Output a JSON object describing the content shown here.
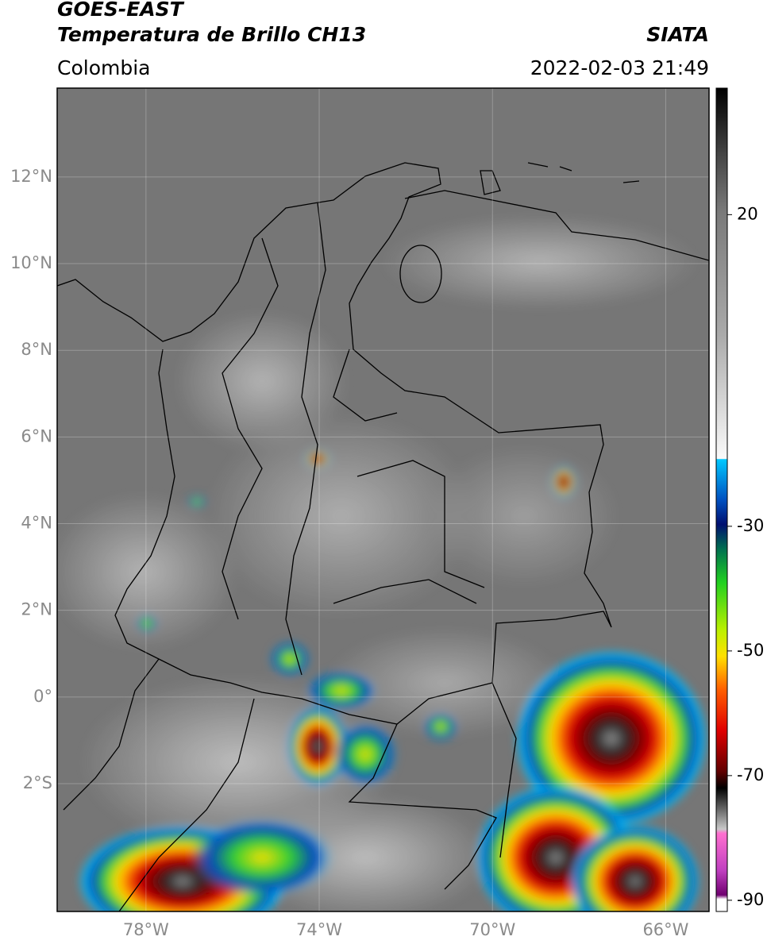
{
  "header": {
    "title": "GOES-EAST",
    "subtitle": "Temperatura de Brillo CH13",
    "source": "SIATA",
    "region": "Colombia",
    "datetime": "2022-02-03 21:49"
  },
  "map": {
    "lon_lim": [
      -80.05,
      -65
    ],
    "lat_lim": [
      -4.95,
      14.05
    ],
    "lat_ticks": [
      {
        "value": 12,
        "label": "12°N"
      },
      {
        "value": 10,
        "label": "10°N"
      },
      {
        "value": 8,
        "label": "8°N"
      },
      {
        "value": 6,
        "label": "6°N"
      },
      {
        "value": 4,
        "label": "4°N"
      },
      {
        "value": 2,
        "label": "2°N"
      },
      {
        "value": 0,
        "label": "0°"
      },
      {
        "value": -2,
        "label": "2°S"
      }
    ],
    "lon_ticks": [
      {
        "value": -78,
        "label": "78°W"
      },
      {
        "value": -74,
        "label": "74°W"
      },
      {
        "value": -70,
        "label": "70°W"
      },
      {
        "value": -66,
        "label": "66°W"
      }
    ]
  },
  "colorbar": {
    "lim": [
      -91.8,
      40.3
    ],
    "ticks": [
      20,
      -30,
      -50,
      -70,
      -90
    ]
  }
}
